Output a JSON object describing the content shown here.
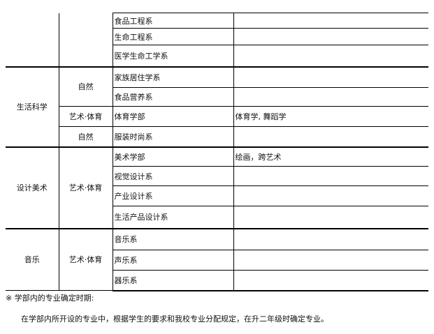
{
  "groups": [
    {
      "college": "",
      "category": [
        {
          "label": "",
          "span": 3
        }
      ],
      "rows": [
        {
          "dept": "食品工程系",
          "major": ""
        },
        {
          "dept": "生命工程系",
          "major": ""
        },
        {
          "dept": "医学生命工学系",
          "major": ""
        }
      ]
    },
    {
      "college": "生活科学",
      "category": [
        {
          "label": "自然",
          "span": 2
        },
        {
          "label": "艺术·体育",
          "span": 1
        },
        {
          "label": "自然",
          "span": 1
        }
      ],
      "rows": [
        {
          "dept": "家族居住学系",
          "major": ""
        },
        {
          "dept": "食品营养系",
          "major": ""
        },
        {
          "dept": "体育学部",
          "major": "体育学, 舞蹈学"
        },
        {
          "dept": "服装时尚系",
          "major": ""
        }
      ]
    },
    {
      "college": "设计美术",
      "category": [
        {
          "label": "艺术·体育",
          "span": 4
        }
      ],
      "rows": [
        {
          "dept": "美术学部",
          "major": "绘画，跨艺术"
        },
        {
          "dept": "视觉设计系",
          "major": ""
        },
        {
          "dept": "产业设计系",
          "major": ""
        },
        {
          "dept": "生活产品设计系",
          "major": ""
        }
      ]
    },
    {
      "college": "音乐",
      "category": [
        {
          "label": "艺术·体育",
          "span": 3
        }
      ],
      "rows": [
        {
          "dept": "音乐系",
          "major": ""
        },
        {
          "dept": "声乐系",
          "major": ""
        },
        {
          "dept": "器乐系",
          "major": ""
        }
      ]
    }
  ],
  "note": {
    "title": "※ 学部内的专业确定时期:",
    "text": "在学部内所开设的专业中，根据学生的要求和我校专业分配规定，在升二年级时确定专业。"
  }
}
